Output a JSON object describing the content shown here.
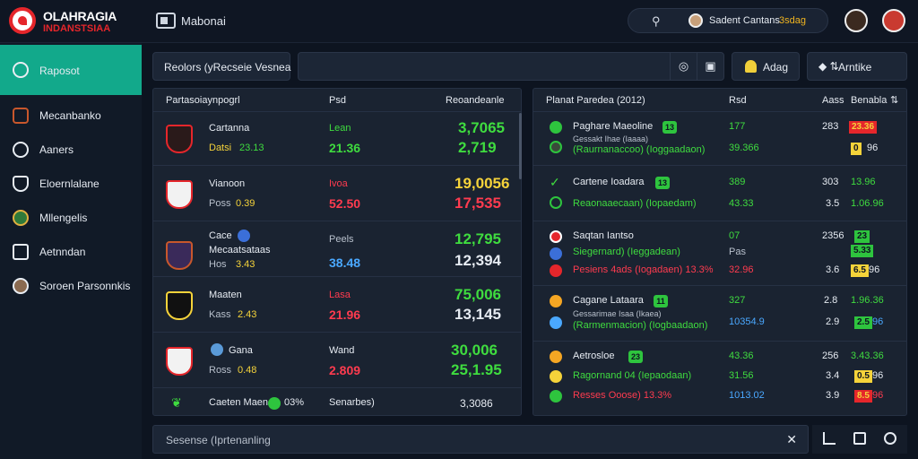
{
  "brand": {
    "line1": "OLAHRAGIA",
    "line2": "INDANSTSIAA"
  },
  "topbar": {
    "title": "Mabonai",
    "search_user": "Sadent Cantans",
    "search_number": "3sdag"
  },
  "sidebar": {
    "items": [
      {
        "label": "Raposot",
        "icon": "shield-check-icon"
      },
      {
        "label": "Mecanbanko",
        "icon": "club-crest-icon"
      },
      {
        "label": "Aaners",
        "icon": "helmet-icon"
      },
      {
        "label": "Eloernlalane",
        "icon": "shield-icon"
      },
      {
        "label": "Mllengelis",
        "icon": "globe-icon"
      },
      {
        "label": "Aetnndan",
        "icon": "calendar-icon"
      },
      {
        "label": "Soroen Parsonnkis",
        "icon": "user-icon"
      }
    ]
  },
  "toolbar": {
    "filter_label": "Reolors (yRecseie Vesnea",
    "add_label": "Adag",
    "filter_btn_label": "Arntike"
  },
  "left_panel": {
    "col1": "Partasoiaynpogrl",
    "col2": "Psd",
    "col3": "Reoandeanle",
    "rows": [
      {
        "name": "Cartanna",
        "sub": "Datsi",
        "sub_val": "23.13",
        "c2a": "Lean",
        "c2b": "21.36",
        "big1": "3,7065",
        "big2": "2,719"
      },
      {
        "name": "Vianoon",
        "sub": "Poss",
        "sub_val": "0.39",
        "c2a": "Ivoa",
        "c2b": "52.50",
        "big1": "19,0056",
        "big2": "17,535"
      },
      {
        "name": "Cace",
        "name2": "Mecaatsataas",
        "sub": "Hos",
        "sub_val": "3.43",
        "c2a": "Peels",
        "c2b": "38.48",
        "big1": "12,795",
        "big2": "12,394"
      },
      {
        "name": "Maaten",
        "sub": "Kass",
        "sub_val": "2.43",
        "c2a": "Lasa",
        "c2b": "21.96",
        "big1": "75,006",
        "big2": "13,145"
      },
      {
        "name": "Gana",
        "sub": "Ross",
        "sub_val": "0.48",
        "c2a": "Wand",
        "c2b": "2.809",
        "big1": "30,006",
        "big2": "25,1.95"
      }
    ],
    "last": {
      "name": "Caeten Maen",
      "pct": "03%",
      "c2": "Senarbes)",
      "big": "3,3086"
    }
  },
  "right_panel": {
    "col1": "Planat Paredea (2012)",
    "col2": "Rsd",
    "col3": "Aass",
    "col4": "Benabla",
    "rows": [
      {
        "l1": "Paghare Maeoline",
        "b1": "13",
        "l2": "Gessakt Ihae (Iaaaa)",
        "l3": "(Raurnanaccoo) (Ioggaadaon)",
        "m1": "177",
        "m2": "39.366",
        "n1": "283",
        "n2": "0",
        "ch1": "23.36",
        "ch2": "0.36",
        "ch2_suffix": "96"
      },
      {
        "l1": "Cartene Ioadara",
        "b1": "13",
        "l2": "Reaonaaecaan) (Iopaedam)",
        "m1": "389",
        "m2": "43.33",
        "n1": "303",
        "n2": "3.5",
        "ch1": "13.96",
        "ch2": "1.06.96"
      },
      {
        "l1": "Saqtan Iantso",
        "l2": "Siegernard) (Ieggadean)",
        "l3": "Pesiens 4ads (Iogadaen) 13.3%",
        "m1": "07",
        "m2": "Pas",
        "m3": "32.96",
        "n1": "2356",
        "n3": "3.6",
        "ch1": "23",
        "ch1b": "5.33",
        "ch3": "6.5",
        "ch3_suffix": "96"
      },
      {
        "l1": "Cagane Lataara",
        "b1": "11",
        "l2": "Gessarimae Isaa (Ikaea)",
        "l3": "(Rarmenmacion) (Iogbaadaon)",
        "m1": "327",
        "m2": "10354.9",
        "n1": "2.8",
        "n2": "2.9",
        "ch1": "1.96.36",
        "ch2": "2.5",
        "ch2_suffix": "96"
      },
      {
        "l1": "Aetrosloe",
        "b1": "23",
        "l2": "Ragornand 04 (Iepaodaan)",
        "l3": "Resses Ooose) 13.3%",
        "m1": "43.36",
        "m2": "31.56",
        "m3": "1013.02",
        "n1": "256",
        "n2": "3.4",
        "n3": "3.9",
        "ch1": "3.43.36",
        "ch2": "0.5",
        "ch2_suffix": "96",
        "ch3": "8.5",
        "ch3_suffix": "96"
      }
    ]
  },
  "bottom": {
    "placeholder": "Sesense (Iprtenanling"
  },
  "colors": {
    "accent": "#12a98b",
    "positive": "#3fdc3f",
    "negative": "#ff3b4f",
    "highlight": "#f5d33a"
  }
}
